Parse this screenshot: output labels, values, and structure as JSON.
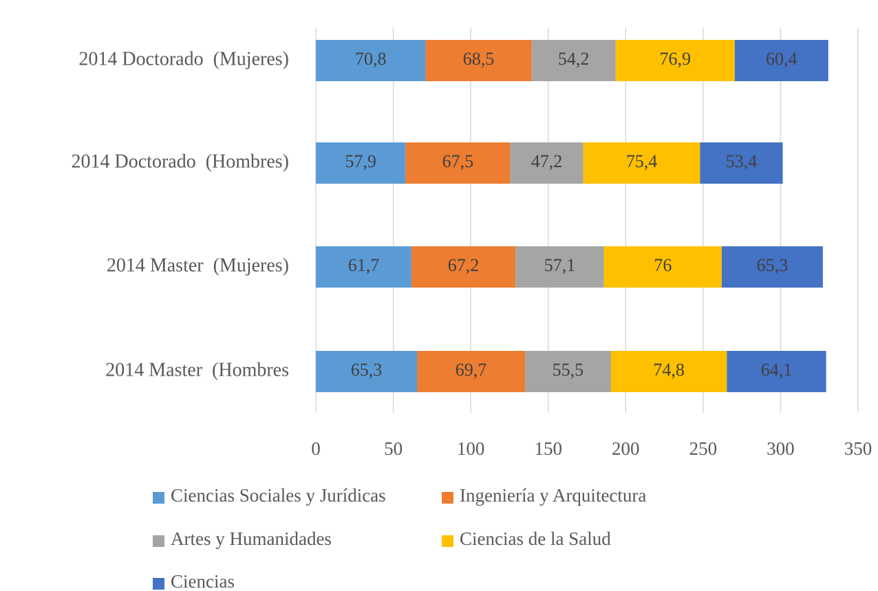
{
  "chart_data": {
    "type": "stacked_barh",
    "categories": [
      "2014 Doctorado  (Mujeres)",
      "2014 Doctorado  (Hombres)",
      "2014 Master  (Mujeres)",
      "2014 Master  (Hombres"
    ],
    "series": [
      {
        "name": "Ciencias Sociales y Jurídicas",
        "color": "#5b9bd5",
        "values": [
          70.8,
          57.9,
          61.7,
          65.3
        ],
        "value_labels": [
          "70,8",
          "57,9",
          "61,7",
          "65,3"
        ]
      },
      {
        "name": "Ingeniería y Arquitectura",
        "color": "#ed7d31",
        "values": [
          68.5,
          67.5,
          67.2,
          69.7
        ],
        "value_labels": [
          "68,5",
          "67,5",
          "67,2",
          "69,7"
        ]
      },
      {
        "name": "Artes y Humanidades",
        "color": "#a5a5a5",
        "values": [
          54.2,
          47.2,
          57.1,
          55.5
        ],
        "value_labels": [
          "54,2",
          "47,2",
          "57,1",
          "55,5"
        ]
      },
      {
        "name": "Ciencias de la Salud",
        "color": "#ffc000",
        "values": [
          76.9,
          75.4,
          76,
          74.8
        ],
        "value_labels": [
          "76,9",
          "75,4",
          "76",
          "74,8"
        ]
      },
      {
        "name": "Ciencias",
        "color": "#4472c4",
        "values": [
          60.4,
          53.4,
          65.3,
          64.1
        ],
        "value_labels": [
          "60,4",
          "53,4",
          "65,3",
          "64,1"
        ]
      }
    ],
    "xlim": [
      0,
      350
    ],
    "xticks": [
      0,
      50,
      100,
      150,
      200,
      250,
      300,
      350
    ],
    "grid": true
  }
}
